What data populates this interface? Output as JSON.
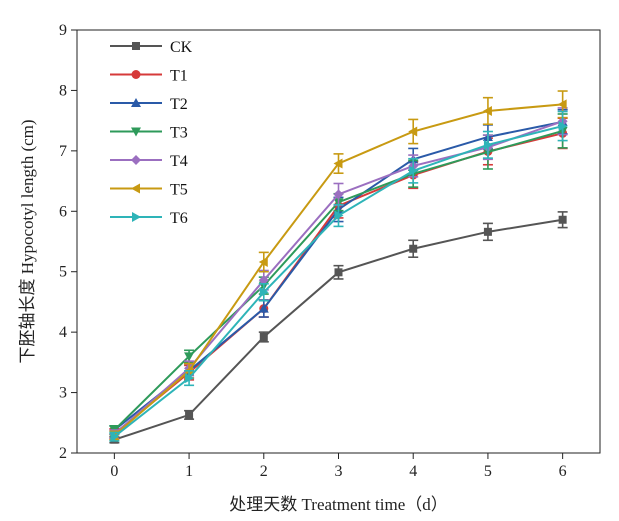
{
  "chart_data": {
    "type": "line",
    "xlabel": "处理天数 Treatment time（d）",
    "ylabel": "下胚轴长度 Hypocotyl length (cm)",
    "x": [
      0,
      1,
      2,
      3,
      4,
      5,
      6
    ],
    "xlim": [
      -0.5,
      6.5
    ],
    "ylim": [
      2,
      9
    ],
    "xticks": [
      0,
      1,
      2,
      3,
      4,
      5,
      6
    ],
    "yticks": [
      2,
      3,
      4,
      5,
      6,
      7,
      8,
      9
    ],
    "grid": false,
    "legend_position": "top-left",
    "series": [
      {
        "name": "CK",
        "color": "#555555",
        "marker": "square",
        "values": [
          2.22,
          2.63,
          3.92,
          4.99,
          5.38,
          5.66,
          5.86
        ],
        "errors": [
          0.05,
          0.07,
          0.08,
          0.11,
          0.14,
          0.14,
          0.13
        ]
      },
      {
        "name": "T1",
        "color": "#d63a3a",
        "marker": "circle",
        "values": [
          2.32,
          3.33,
          4.39,
          6.09,
          6.6,
          6.99,
          7.29
        ],
        "errors": [
          0.08,
          0.12,
          0.14,
          0.2,
          0.22,
          0.22,
          0.25
        ]
      },
      {
        "name": "T2",
        "color": "#2a5aa8",
        "marker": "triangle-up",
        "values": [
          2.38,
          3.36,
          4.39,
          6.03,
          6.86,
          7.23,
          7.48
        ],
        "errors": [
          0.07,
          0.12,
          0.14,
          0.2,
          0.18,
          0.2,
          0.2
        ]
      },
      {
        "name": "T3",
        "color": "#2e9a5a",
        "marker": "triangle-down",
        "values": [
          2.38,
          3.6,
          4.77,
          6.15,
          6.62,
          6.98,
          7.33
        ],
        "errors": [
          0.07,
          0.1,
          0.14,
          0.14,
          0.22,
          0.28,
          0.28
        ]
      },
      {
        "name": "T4",
        "color": "#9b6fc0",
        "marker": "diamond",
        "values": [
          2.31,
          3.4,
          4.86,
          6.28,
          6.75,
          7.06,
          7.49
        ],
        "errors": [
          0.07,
          0.12,
          0.16,
          0.18,
          0.18,
          0.2,
          0.22
        ]
      },
      {
        "name": "T5",
        "color": "#c89a12",
        "marker": "triangle-left",
        "values": [
          2.29,
          3.36,
          5.16,
          6.79,
          7.32,
          7.66,
          7.77
        ],
        "errors": [
          0.07,
          0.12,
          0.16,
          0.16,
          0.2,
          0.22,
          0.22
        ]
      },
      {
        "name": "T6",
        "color": "#2eb4b8",
        "marker": "triangle-right",
        "values": [
          2.27,
          3.24,
          4.66,
          5.93,
          6.67,
          7.1,
          7.41
        ],
        "errors": [
          0.07,
          0.12,
          0.14,
          0.18,
          0.2,
          0.22,
          0.24
        ]
      }
    ]
  }
}
